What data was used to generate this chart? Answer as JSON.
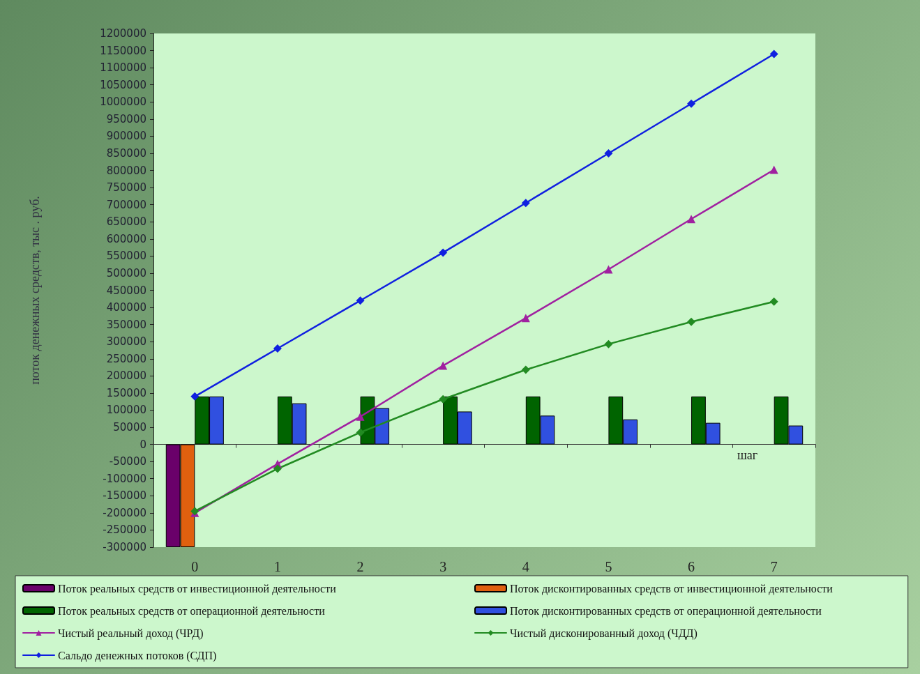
{
  "chart_data": {
    "type": "bar",
    "ylabel": "поток денежных средств, тыс . руб.",
    "xlabel": "шаг",
    "categories": [
      "0",
      "1",
      "2",
      "3",
      "4",
      "5",
      "6",
      "7"
    ],
    "series": [
      {
        "name": "Поток реальных средств от инвестиционной деятельности",
        "color": "#6a006a",
        "values": [
          -300000,
          null,
          null,
          null,
          null,
          null,
          null,
          null
        ]
      },
      {
        "name": "Поток дисконтированных средств от инвестиционной деятельности",
        "color": "#e0600f",
        "values": [
          -300000,
          null,
          null,
          null,
          null,
          null,
          null,
          null
        ]
      },
      {
        "name": "Поток реальных средств от операционной деятельности",
        "color": "#006400",
        "values": [
          140000,
          140000,
          140000,
          140000,
          140000,
          140000,
          140000,
          140000
        ]
      },
      {
        "name": "Поток дисконтированных средств от операционной деятельности",
        "color": "#3050e0",
        "values": [
          140000,
          120000,
          106000,
          96000,
          84000,
          73000,
          63000,
          55000
        ]
      },
      {
        "name": "Чистый реальный доход (ЧРД)",
        "type": "line",
        "marker": "triangle",
        "color": "#a020a0",
        "values": [
          -200000,
          -57000,
          81000,
          230000,
          369000,
          511000,
          658000,
          802000
        ]
      },
      {
        "name": "Чистый дисконированный доход (ЧДД)",
        "type": "line",
        "marker": "diamond",
        "color": "#228b22",
        "values": [
          -195000,
          -71000,
          35000,
          132000,
          218000,
          293000,
          358000,
          417000
        ]
      },
      {
        "name": "Сальдо денежных потоков (СДП)",
        "type": "line",
        "marker": "diamond",
        "color": "#1020e0",
        "values": [
          140000,
          280000,
          420000,
          560000,
          705000,
          850000,
          995000,
          1140000
        ]
      }
    ],
    "ylim": [
      -300000,
      1200000
    ],
    "yticks": [
      -300000,
      -250000,
      -200000,
      -150000,
      -100000,
      -50000,
      0,
      50000,
      100000,
      150000,
      200000,
      250000,
      300000,
      350000,
      400000,
      450000,
      500000,
      550000,
      600000,
      650000,
      700000,
      750000,
      800000,
      850000,
      900000,
      950000,
      1000000,
      1050000,
      1100000,
      1150000,
      1200000
    ],
    "legend": "bottom"
  }
}
